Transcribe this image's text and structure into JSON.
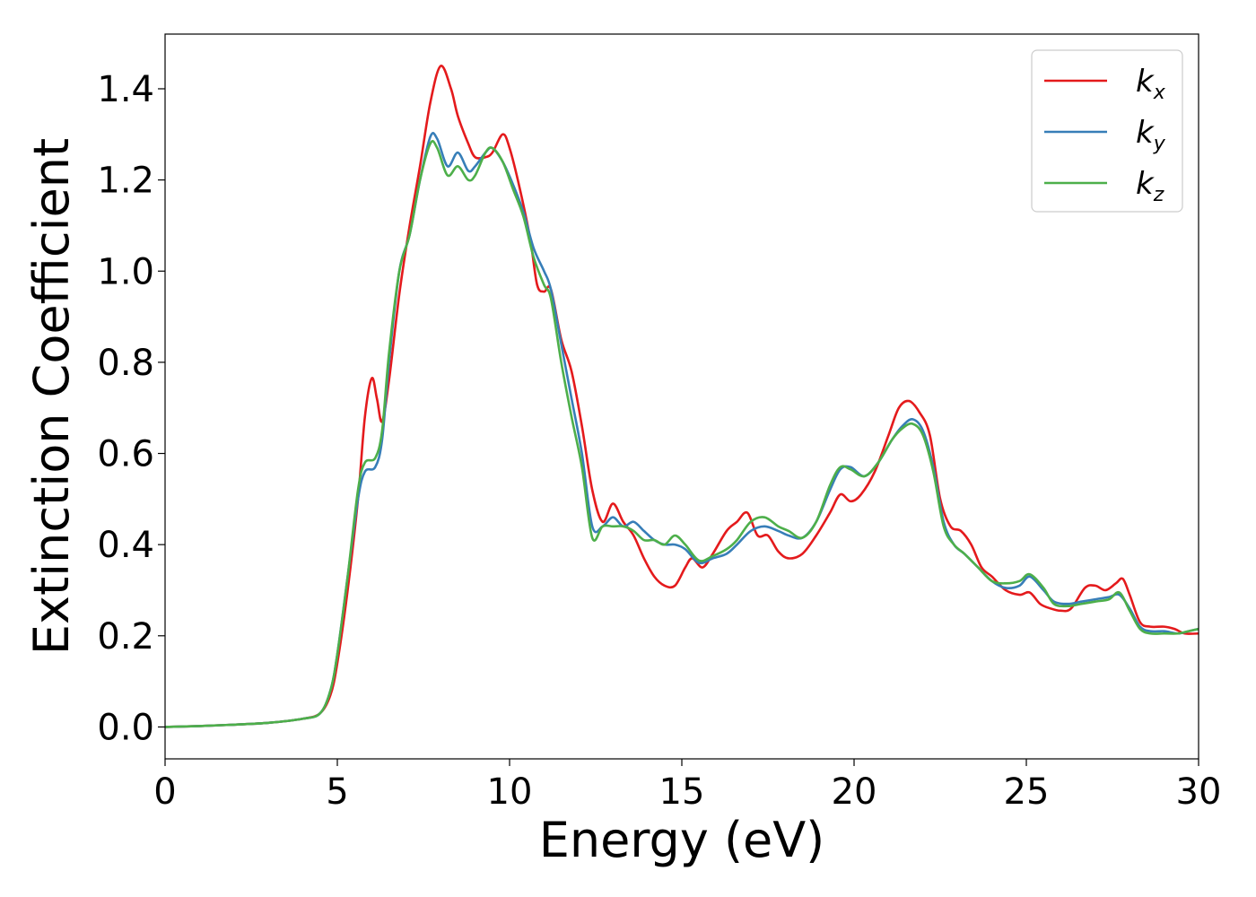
{
  "chart_data": {
    "type": "line",
    "xlabel": "Energy (eV)",
    "ylabel": "Extinction Coefficient",
    "xlim": [
      0,
      30
    ],
    "ylim": [
      -0.07,
      1.52
    ],
    "xticks": [
      0,
      5,
      10,
      15,
      20,
      25,
      30
    ],
    "yticks": [
      0.0,
      0.2,
      0.4,
      0.6,
      0.8,
      1.0,
      1.2,
      1.4
    ],
    "grid": false,
    "legend_position": "top-right",
    "series": [
      {
        "name": "k_x",
        "label_base": "k",
        "label_sub": "x",
        "color": "#e41a1c",
        "points": [
          [
            0,
            0.0
          ],
          [
            1,
            0.002
          ],
          [
            2,
            0.005
          ],
          [
            3,
            0.009
          ],
          [
            4,
            0.018
          ],
          [
            4.5,
            0.03
          ],
          [
            4.8,
            0.07
          ],
          [
            5.0,
            0.14
          ],
          [
            5.3,
            0.3
          ],
          [
            5.6,
            0.5
          ],
          [
            5.8,
            0.68
          ],
          [
            6.0,
            0.765
          ],
          [
            6.15,
            0.72
          ],
          [
            6.3,
            0.67
          ],
          [
            6.5,
            0.76
          ],
          [
            6.8,
            0.95
          ],
          [
            7.1,
            1.1
          ],
          [
            7.4,
            1.23
          ],
          [
            7.7,
            1.37
          ],
          [
            8.0,
            1.45
          ],
          [
            8.3,
            1.4
          ],
          [
            8.5,
            1.34
          ],
          [
            8.8,
            1.28
          ],
          [
            9.0,
            1.25
          ],
          [
            9.3,
            1.25
          ],
          [
            9.5,
            1.26
          ],
          [
            9.8,
            1.3
          ],
          [
            10.0,
            1.27
          ],
          [
            10.3,
            1.18
          ],
          [
            10.6,
            1.07
          ],
          [
            10.8,
            0.97
          ],
          [
            11.0,
            0.955
          ],
          [
            11.2,
            0.96
          ],
          [
            11.5,
            0.85
          ],
          [
            11.8,
            0.78
          ],
          [
            12.1,
            0.66
          ],
          [
            12.4,
            0.52
          ],
          [
            12.7,
            0.45
          ],
          [
            13.0,
            0.49
          ],
          [
            13.3,
            0.45
          ],
          [
            13.6,
            0.42
          ],
          [
            13.9,
            0.37
          ],
          [
            14.2,
            0.33
          ],
          [
            14.5,
            0.31
          ],
          [
            14.8,
            0.31
          ],
          [
            15.1,
            0.35
          ],
          [
            15.3,
            0.37
          ],
          [
            15.6,
            0.35
          ],
          [
            15.9,
            0.38
          ],
          [
            16.3,
            0.43
          ],
          [
            16.6,
            0.45
          ],
          [
            16.9,
            0.47
          ],
          [
            17.2,
            0.42
          ],
          [
            17.5,
            0.42
          ],
          [
            17.8,
            0.385
          ],
          [
            18.1,
            0.37
          ],
          [
            18.5,
            0.38
          ],
          [
            18.9,
            0.42
          ],
          [
            19.3,
            0.47
          ],
          [
            19.6,
            0.51
          ],
          [
            19.9,
            0.495
          ],
          [
            20.2,
            0.51
          ],
          [
            20.6,
            0.56
          ],
          [
            21.0,
            0.64
          ],
          [
            21.3,
            0.7
          ],
          [
            21.6,
            0.715
          ],
          [
            21.9,
            0.69
          ],
          [
            22.2,
            0.64
          ],
          [
            22.5,
            0.5
          ],
          [
            22.8,
            0.44
          ],
          [
            23.1,
            0.43
          ],
          [
            23.4,
            0.4
          ],
          [
            23.7,
            0.35
          ],
          [
            24.0,
            0.33
          ],
          [
            24.4,
            0.3
          ],
          [
            24.8,
            0.29
          ],
          [
            25.1,
            0.295
          ],
          [
            25.4,
            0.27
          ],
          [
            25.7,
            0.26
          ],
          [
            26.0,
            0.255
          ],
          [
            26.3,
            0.26
          ],
          [
            26.7,
            0.305
          ],
          [
            27.0,
            0.31
          ],
          [
            27.3,
            0.3
          ],
          [
            27.6,
            0.315
          ],
          [
            27.8,
            0.325
          ],
          [
            28.0,
            0.29
          ],
          [
            28.3,
            0.23
          ],
          [
            28.6,
            0.22
          ],
          [
            29.0,
            0.22
          ],
          [
            29.3,
            0.215
          ],
          [
            29.6,
            0.205
          ],
          [
            30.0,
            0.205
          ]
        ]
      },
      {
        "name": "k_y",
        "label_base": "k",
        "label_sub": "y",
        "color": "#377eb8",
        "points": [
          [
            0,
            0.0
          ],
          [
            1,
            0.002
          ],
          [
            2,
            0.005
          ],
          [
            3,
            0.009
          ],
          [
            4,
            0.018
          ],
          [
            4.5,
            0.03
          ],
          [
            4.8,
            0.08
          ],
          [
            5.0,
            0.16
          ],
          [
            5.3,
            0.33
          ],
          [
            5.6,
            0.5
          ],
          [
            5.8,
            0.56
          ],
          [
            6.1,
            0.57
          ],
          [
            6.3,
            0.63
          ],
          [
            6.5,
            0.8
          ],
          [
            6.8,
            1.0
          ],
          [
            7.1,
            1.08
          ],
          [
            7.4,
            1.2
          ],
          [
            7.7,
            1.295
          ],
          [
            7.9,
            1.29
          ],
          [
            8.2,
            1.23
          ],
          [
            8.5,
            1.26
          ],
          [
            8.8,
            1.22
          ],
          [
            9.0,
            1.23
          ],
          [
            9.3,
            1.26
          ],
          [
            9.5,
            1.27
          ],
          [
            9.8,
            1.24
          ],
          [
            10.1,
            1.19
          ],
          [
            10.4,
            1.13
          ],
          [
            10.7,
            1.05
          ],
          [
            11.0,
            1.0
          ],
          [
            11.2,
            0.96
          ],
          [
            11.5,
            0.84
          ],
          [
            11.8,
            0.72
          ],
          [
            12.1,
            0.6
          ],
          [
            12.4,
            0.44
          ],
          [
            12.7,
            0.44
          ],
          [
            13.0,
            0.46
          ],
          [
            13.3,
            0.44
          ],
          [
            13.6,
            0.45
          ],
          [
            13.9,
            0.43
          ],
          [
            14.2,
            0.41
          ],
          [
            14.5,
            0.4
          ],
          [
            14.8,
            0.4
          ],
          [
            15.1,
            0.39
          ],
          [
            15.5,
            0.36
          ],
          [
            15.9,
            0.37
          ],
          [
            16.3,
            0.38
          ],
          [
            16.6,
            0.4
          ],
          [
            17.0,
            0.43
          ],
          [
            17.4,
            0.44
          ],
          [
            17.8,
            0.43
          ],
          [
            18.1,
            0.42
          ],
          [
            18.5,
            0.415
          ],
          [
            18.9,
            0.45
          ],
          [
            19.3,
            0.52
          ],
          [
            19.6,
            0.565
          ],
          [
            19.9,
            0.57
          ],
          [
            20.3,
            0.55
          ],
          [
            20.7,
            0.58
          ],
          [
            21.1,
            0.63
          ],
          [
            21.4,
            0.66
          ],
          [
            21.7,
            0.675
          ],
          [
            22.0,
            0.65
          ],
          [
            22.3,
            0.57
          ],
          [
            22.6,
            0.45
          ],
          [
            22.9,
            0.4
          ],
          [
            23.2,
            0.38
          ],
          [
            23.6,
            0.35
          ],
          [
            24.0,
            0.32
          ],
          [
            24.4,
            0.305
          ],
          [
            24.8,
            0.31
          ],
          [
            25.1,
            0.33
          ],
          [
            25.5,
            0.3
          ],
          [
            25.8,
            0.275
          ],
          [
            26.2,
            0.27
          ],
          [
            26.6,
            0.275
          ],
          [
            27.0,
            0.28
          ],
          [
            27.4,
            0.285
          ],
          [
            27.7,
            0.29
          ],
          [
            28.0,
            0.26
          ],
          [
            28.3,
            0.22
          ],
          [
            28.6,
            0.21
          ],
          [
            29.0,
            0.21
          ],
          [
            29.4,
            0.205
          ],
          [
            29.7,
            0.21
          ],
          [
            30.0,
            0.215
          ]
        ]
      },
      {
        "name": "k_z",
        "label_base": "k",
        "label_sub": "z",
        "color": "#4daf4a",
        "points": [
          [
            0,
            0.0
          ],
          [
            1,
            0.002
          ],
          [
            2,
            0.005
          ],
          [
            3,
            0.009
          ],
          [
            4,
            0.018
          ],
          [
            4.5,
            0.03
          ],
          [
            4.8,
            0.08
          ],
          [
            5.0,
            0.16
          ],
          [
            5.3,
            0.33
          ],
          [
            5.6,
            0.52
          ],
          [
            5.8,
            0.58
          ],
          [
            6.1,
            0.59
          ],
          [
            6.3,
            0.65
          ],
          [
            6.5,
            0.82
          ],
          [
            6.8,
            1.0
          ],
          [
            7.1,
            1.08
          ],
          [
            7.4,
            1.2
          ],
          [
            7.7,
            1.28
          ],
          [
            7.9,
            1.27
          ],
          [
            8.2,
            1.21
          ],
          [
            8.5,
            1.23
          ],
          [
            8.8,
            1.2
          ],
          [
            9.0,
            1.21
          ],
          [
            9.3,
            1.26
          ],
          [
            9.5,
            1.27
          ],
          [
            9.8,
            1.24
          ],
          [
            10.1,
            1.18
          ],
          [
            10.4,
            1.12
          ],
          [
            10.7,
            1.03
          ],
          [
            11.0,
            0.97
          ],
          [
            11.2,
            0.94
          ],
          [
            11.5,
            0.8
          ],
          [
            11.8,
            0.68
          ],
          [
            12.1,
            0.57
          ],
          [
            12.4,
            0.415
          ],
          [
            12.7,
            0.44
          ],
          [
            13.0,
            0.44
          ],
          [
            13.3,
            0.44
          ],
          [
            13.6,
            0.43
          ],
          [
            13.9,
            0.41
          ],
          [
            14.2,
            0.41
          ],
          [
            14.5,
            0.4
          ],
          [
            14.8,
            0.42
          ],
          [
            15.1,
            0.4
          ],
          [
            15.5,
            0.365
          ],
          [
            15.9,
            0.375
          ],
          [
            16.3,
            0.39
          ],
          [
            16.6,
            0.41
          ],
          [
            17.0,
            0.45
          ],
          [
            17.4,
            0.46
          ],
          [
            17.8,
            0.44
          ],
          [
            18.1,
            0.43
          ],
          [
            18.5,
            0.415
          ],
          [
            18.9,
            0.45
          ],
          [
            19.3,
            0.53
          ],
          [
            19.6,
            0.57
          ],
          [
            19.9,
            0.565
          ],
          [
            20.3,
            0.55
          ],
          [
            20.7,
            0.58
          ],
          [
            21.1,
            0.63
          ],
          [
            21.4,
            0.655
          ],
          [
            21.7,
            0.665
          ],
          [
            22.0,
            0.64
          ],
          [
            22.3,
            0.56
          ],
          [
            22.6,
            0.44
          ],
          [
            22.9,
            0.4
          ],
          [
            23.2,
            0.38
          ],
          [
            23.6,
            0.35
          ],
          [
            24.0,
            0.32
          ],
          [
            24.4,
            0.315
          ],
          [
            24.8,
            0.32
          ],
          [
            25.1,
            0.335
          ],
          [
            25.5,
            0.305
          ],
          [
            25.8,
            0.27
          ],
          [
            26.2,
            0.265
          ],
          [
            26.6,
            0.27
          ],
          [
            27.0,
            0.275
          ],
          [
            27.4,
            0.28
          ],
          [
            27.7,
            0.295
          ],
          [
            28.0,
            0.255
          ],
          [
            28.3,
            0.215
          ],
          [
            28.6,
            0.205
          ],
          [
            29.0,
            0.205
          ],
          [
            29.4,
            0.205
          ],
          [
            29.7,
            0.21
          ],
          [
            30.0,
            0.215
          ]
        ]
      }
    ]
  }
}
